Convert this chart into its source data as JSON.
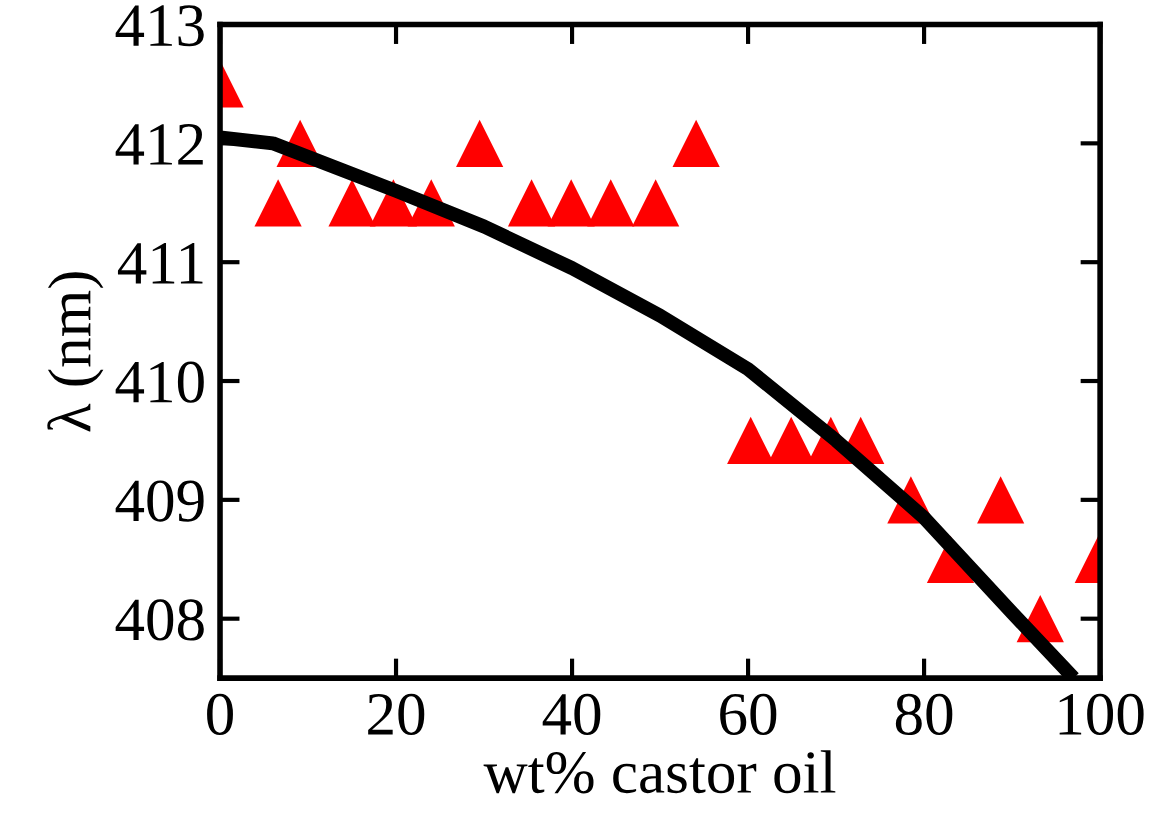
{
  "chart_data": {
    "type": "scatter",
    "xlabel": "wt% castor oil",
    "ylabel": "λ (nm)",
    "xlim": [
      0,
      100
    ],
    "ylim": [
      407.5,
      413
    ],
    "xticks": [
      0,
      20,
      40,
      60,
      80,
      100
    ],
    "yticks": [
      408,
      409,
      410,
      411,
      412,
      413
    ],
    "grid": false,
    "legend": false,
    "series": [
      {
        "type": "scatter",
        "color": "#ff0000",
        "marker": "triangle",
        "x": [
          0,
          6.6,
          9.1,
          15,
          19.7,
          24,
          29.5,
          35.4,
          39.9,
          44.4,
          49.5,
          54.1,
          60.3,
          64.9,
          69.4,
          72.8,
          78.5,
          83,
          88.7,
          93.2,
          99.8
        ],
        "values": [
          412.5,
          411.5,
          412,
          411.5,
          411.5,
          411.5,
          412,
          411.5,
          411.5,
          411.5,
          411.5,
          412,
          409.5,
          409.5,
          409.5,
          409.5,
          409,
          408.5,
          409,
          408,
          408.5
        ]
      },
      {
        "type": "line",
        "color": "#000000",
        "marker": "none",
        "line_style": "solid",
        "x": [
          0,
          6,
          20,
          30,
          40,
          50,
          60,
          70,
          80,
          90,
          97
        ],
        "values": [
          412.05,
          412.0,
          411.6,
          411.3,
          410.95,
          410.55,
          410.1,
          409.5,
          408.85,
          408.05,
          407.5
        ]
      }
    ]
  }
}
